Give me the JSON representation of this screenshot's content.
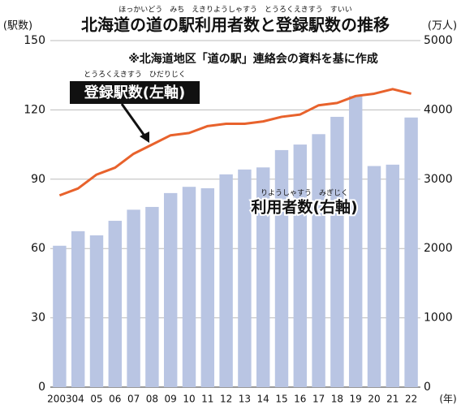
{
  "chart_data": {
    "type": "bar-line",
    "title": "北海道の道の駅利用者数と登録駅数の推移",
    "title_reading": "ほっかいどう　みち　えきりようしゃすう　とうろくえきすう　すいい",
    "subtitle": "※北海道地区「道の駅」連絡会の資料を基に作成",
    "y_label": "(駅数)",
    "y2_label": "(万人)",
    "x_label": "(年)",
    "categories": [
      "2003",
      "04",
      "05",
      "06",
      "07",
      "08",
      "09",
      "10",
      "11",
      "12",
      "13",
      "14",
      "15",
      "16",
      "17",
      "18",
      "19",
      "20",
      "21",
      "22"
    ],
    "series": [
      {
        "name": "登録駅数(左軸)",
        "reading": "とうろくえきすう　ひだりじく",
        "type": "line",
        "axis": "y",
        "color": "#e8622c",
        "values": [
          83,
          86,
          92,
          95,
          101,
          105,
          109,
          110,
          113,
          114,
          114,
          115,
          117,
          118,
          122,
          123,
          126,
          127,
          129,
          127
        ]
      },
      {
        "name": "利用者数(右軸)",
        "reading": "りようしゃすう　みぎじく",
        "type": "bar",
        "axis": "y2",
        "color": "#b9c5e3",
        "values": [
          2040,
          2250,
          2190,
          2400,
          2560,
          2600,
          2800,
          2890,
          2870,
          3070,
          3140,
          3170,
          3420,
          3500,
          3650,
          3900,
          4200,
          3190,
          3210,
          3890
        ]
      }
    ],
    "ylim": [
      0,
      150
    ],
    "yticks": [
      0,
      30,
      60,
      90,
      120,
      150
    ],
    "y2lim": [
      0,
      5000
    ],
    "y2ticks": [
      0,
      1000,
      2000,
      3000,
      4000,
      5000
    ],
    "grid": true
  }
}
